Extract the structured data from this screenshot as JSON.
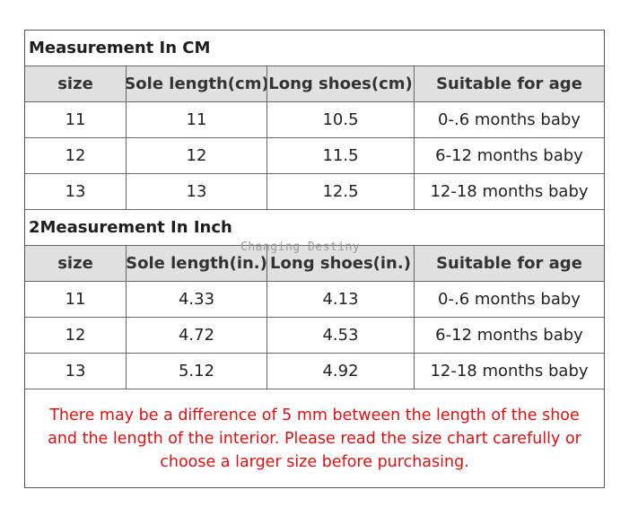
{
  "section_cm": {
    "title": "Measurement In CM",
    "headers": [
      "size",
      "Sole length(cm)",
      "Long shoes(cm)",
      "Suitable for age"
    ],
    "rows": [
      [
        "11",
        "11",
        "10.5",
        "0-.6 months baby"
      ],
      [
        "12",
        "12",
        "11.5",
        "6-12 months baby"
      ],
      [
        "13",
        "13",
        "12.5",
        "12-18 months baby"
      ]
    ]
  },
  "section_inch": {
    "title": "2Measurement In Inch",
    "headers": [
      "size",
      "Sole length(in.)",
      "Long shoes(in.)",
      "Suitable for age"
    ],
    "rows": [
      [
        "11",
        "4.33",
        "4.13",
        "0-.6 months baby"
      ],
      [
        "12",
        "4.72",
        "4.53",
        "6-12 months baby"
      ],
      [
        "13",
        "5.12",
        "4.92",
        "12-18 months baby"
      ]
    ]
  },
  "watermark": "Changing Destiny",
  "note": "There may be a difference of 5 mm between the length of the shoe and the length of the interior. Please read the size chart carefully or choose a larger size before purchasing.",
  "colors": {
    "header_bg": "#e1e1e1",
    "note_text": "#dd1111",
    "border": "#666666"
  }
}
